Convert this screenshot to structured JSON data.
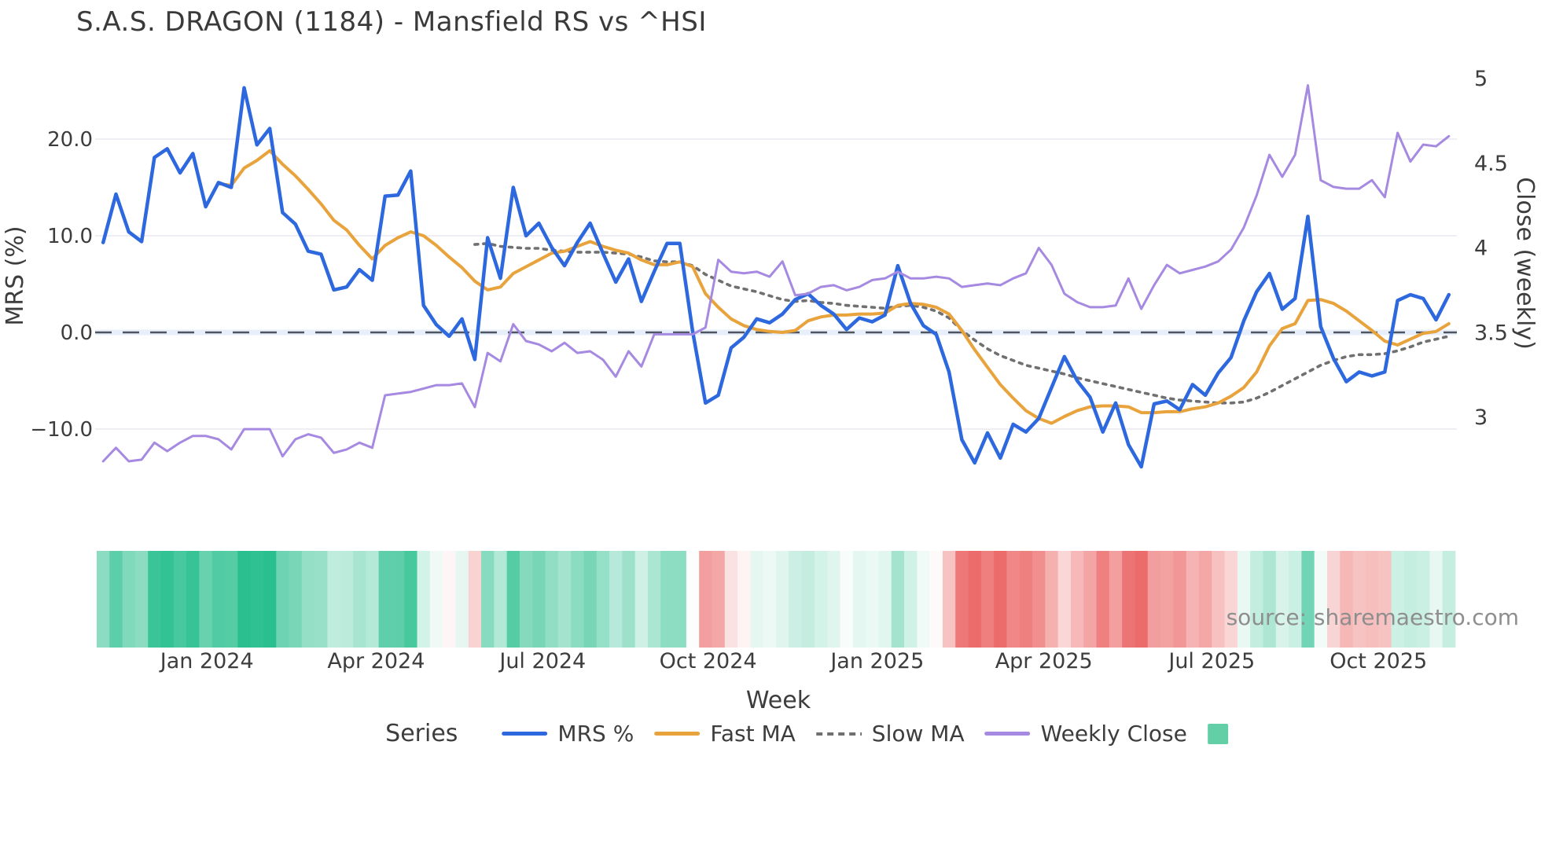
{
  "title": "S.A.S. DRAGON (1184) - Mansfield RS vs ^HSI",
  "source_note": "source: sharemaestro.com",
  "colors": {
    "mrs_line": "#2d68de",
    "fast_ma_line": "#e8a33c",
    "slow_ma_line": "#707070",
    "weekly_close_line": "#a689e1",
    "zero_dash_line": "#4e5560",
    "zero_band": "#e7effa",
    "gridline": "#e9e9f0",
    "tick_text": "#3d3d3d",
    "heat_positive": "#2abf8e",
    "heat_negative": "#ec6b6b",
    "legend_square": "#63cfa6"
  },
  "chart_data": {
    "type": "line",
    "title": "S.A.S. DRAGON (1184) - Mansfield RS vs ^HSI",
    "x_axis": {
      "label": "Week",
      "tick_labels": [
        "Jan 2024",
        "Apr 2024",
        "Jul 2024",
        "Oct 2024",
        "Jan 2025",
        "Apr 2025",
        "Jul 2025",
        "Oct 2025"
      ],
      "tick_indices": [
        8.6,
        21.8,
        34.8,
        47.7,
        60.9,
        73.9,
        87.0,
        100.0
      ],
      "n_points": 106,
      "grid": false
    },
    "y_left": {
      "label": "MRS (%)",
      "tick_labels": [
        "20.0",
        "10.0",
        "0.0",
        "−10.0"
      ],
      "tick_values": [
        20.0,
        10.0,
        0.0,
        -10.0
      ],
      "range": [
        -18.0,
        30.0
      ],
      "zero_line": "dashed",
      "grid": true
    },
    "y_right": {
      "label": "Close (weekly)",
      "tick_labels": [
        "5",
        "4.5",
        "4",
        "3.5",
        "3"
      ],
      "tick_values": [
        5.0,
        4.5,
        4.0,
        3.5,
        3.0
      ],
      "range": [
        2.47,
        5.2
      ],
      "grid": false
    },
    "legend": {
      "title": "Series",
      "position": "bottom",
      "items": [
        {
          "label": "MRS %",
          "swatch": "line",
          "color": "#2d68de"
        },
        {
          "label": "Fast MA",
          "swatch": "line",
          "color": "#e8a33c"
        },
        {
          "label": "Slow MA",
          "swatch": "dashed-line",
          "color": "#707070"
        },
        {
          "label": "Weekly Close",
          "swatch": "line",
          "color": "#a689e1"
        },
        {
          "label": "",
          "swatch": "square",
          "color": "#63cfa6"
        }
      ]
    },
    "heatmap": {
      "description": "weekly strip below chart shaded by MRS % (green positive, red negative)",
      "positive_color": "#2abf8e",
      "negative_color": "#ec6b6b"
    },
    "series": [
      {
        "name": "MRS %",
        "axis": "left",
        "style": "solid",
        "color": "#2d68de",
        "values": [
          9.3,
          14.3,
          10.4,
          9.4,
          18.1,
          19.0,
          16.5,
          18.5,
          13.0,
          15.5,
          15.0,
          25.3,
          19.4,
          21.1,
          12.4,
          11.2,
          8.4,
          8.1,
          4.4,
          4.7,
          6.5,
          5.4,
          14.1,
          14.2,
          16.7,
          2.8,
          0.8,
          -0.4,
          1.4,
          -2.8,
          9.8,
          5.6,
          15.0,
          10.0,
          11.3,
          8.8,
          6.9,
          9.3,
          11.3,
          8.2,
          5.2,
          7.6,
          3.2,
          6.3,
          9.2,
          9.2,
          0.1,
          -7.3,
          -6.5,
          -1.6,
          -0.5,
          1.4,
          1.0,
          1.9,
          3.4,
          4.0,
          2.8,
          1.9,
          0.3,
          1.5,
          1.1,
          1.8,
          6.9,
          3.0,
          0.7,
          -0.2,
          -4.1,
          -11.1,
          -13.5,
          -10.4,
          -13.0,
          -9.5,
          -10.3,
          -8.9,
          -5.7,
          -2.5,
          -5.0,
          -6.7,
          -10.3,
          -7.3,
          -11.6,
          -13.9,
          -7.4,
          -7.1,
          -8.0,
          -5.4,
          -6.5,
          -4.2,
          -2.6,
          1.2,
          4.2,
          6.1,
          2.4,
          3.5,
          12.0,
          0.6,
          -2.7,
          -5.1,
          -4.1,
          -4.5,
          -4.1,
          3.3,
          3.9,
          3.5,
          1.3,
          3.9
        ]
      },
      {
        "name": "Fast MA",
        "axis": "left",
        "style": "solid",
        "color": "#e8a33c",
        "values": [
          null,
          null,
          null,
          null,
          null,
          null,
          null,
          null,
          null,
          15.4,
          15.2,
          17.0,
          17.8,
          18.8,
          17.4,
          16.2,
          14.8,
          13.3,
          11.6,
          10.6,
          9.0,
          7.6,
          9.0,
          9.8,
          10.4,
          10.0,
          9.0,
          7.8,
          6.7,
          5.3,
          4.4,
          4.7,
          6.1,
          6.8,
          7.5,
          8.2,
          8.4,
          8.9,
          9.4,
          8.9,
          8.5,
          8.2,
          7.5,
          7.0,
          7.0,
          7.3,
          6.8,
          4.0,
          2.6,
          1.4,
          0.7,
          0.3,
          0.1,
          0.0,
          0.2,
          1.2,
          1.6,
          1.8,
          1.8,
          1.9,
          1.9,
          2.0,
          2.8,
          3.0,
          2.9,
          2.6,
          1.9,
          0.2,
          -1.8,
          -3.6,
          -5.4,
          -6.8,
          -8.1,
          -8.9,
          -9.4,
          -8.7,
          -8.1,
          -7.7,
          -7.6,
          -7.6,
          -7.7,
          -8.3,
          -8.3,
          -8.2,
          -8.2,
          -7.9,
          -7.7,
          -7.3,
          -6.6,
          -5.7,
          -4.1,
          -1.4,
          0.4,
          0.9,
          3.3,
          3.4,
          3.0,
          2.2,
          1.2,
          0.2,
          -0.9,
          -1.3,
          -0.7,
          -0.1,
          0.1,
          0.9
        ]
      },
      {
        "name": "Slow MA",
        "axis": "left",
        "style": "dotted",
        "color": "#707070",
        "values": [
          null,
          null,
          null,
          null,
          null,
          null,
          null,
          null,
          null,
          null,
          null,
          null,
          null,
          null,
          null,
          null,
          null,
          null,
          null,
          null,
          null,
          null,
          null,
          null,
          null,
          null,
          null,
          null,
          null,
          9.1,
          9.2,
          8.9,
          8.8,
          8.7,
          8.7,
          8.5,
          8.4,
          8.3,
          8.3,
          8.3,
          8.2,
          8.1,
          7.8,
          7.4,
          7.3,
          7.3,
          6.9,
          6.0,
          5.4,
          4.8,
          4.5,
          4.2,
          3.8,
          3.4,
          3.2,
          3.3,
          3.1,
          3.0,
          2.8,
          2.7,
          2.6,
          2.5,
          2.7,
          2.8,
          2.6,
          2.2,
          1.5,
          0.2,
          -0.8,
          -1.7,
          -2.4,
          -2.9,
          -3.4,
          -3.7,
          -4.0,
          -4.3,
          -4.7,
          -5.0,
          -5.3,
          -5.6,
          -5.9,
          -6.2,
          -6.5,
          -6.8,
          -7.0,
          -7.1,
          -7.2,
          -7.3,
          -7.3,
          -7.2,
          -6.8,
          -6.2,
          -5.5,
          -4.8,
          -4.1,
          -3.4,
          -2.9,
          -2.5,
          -2.3,
          -2.3,
          -2.2,
          -1.9,
          -1.5,
          -1.0,
          -0.7,
          -0.4
        ]
      },
      {
        "name": "Weekly Close",
        "axis": "right",
        "style": "solid",
        "color": "#a689e1",
        "values": [
          2.74,
          2.82,
          2.74,
          2.75,
          2.85,
          2.8,
          2.85,
          2.89,
          2.89,
          2.87,
          2.81,
          2.93,
          2.93,
          2.93,
          2.77,
          2.87,
          2.9,
          2.88,
          2.79,
          2.81,
          2.85,
          2.82,
          3.13,
          3.14,
          3.15,
          3.17,
          3.19,
          3.19,
          3.2,
          3.06,
          3.38,
          3.33,
          3.55,
          3.45,
          3.43,
          3.39,
          3.44,
          3.38,
          3.39,
          3.34,
          3.24,
          3.39,
          3.3,
          3.49,
          3.49,
          3.49,
          3.49,
          3.53,
          3.93,
          3.86,
          3.85,
          3.86,
          3.83,
          3.92,
          3.72,
          3.73,
          3.77,
          3.78,
          3.75,
          3.77,
          3.81,
          3.82,
          3.86,
          3.82,
          3.82,
          3.83,
          3.82,
          3.77,
          3.78,
          3.79,
          3.78,
          3.82,
          3.85,
          4.0,
          3.9,
          3.73,
          3.68,
          3.65,
          3.65,
          3.66,
          3.82,
          3.64,
          3.78,
          3.9,
          3.85,
          3.87,
          3.89,
          3.92,
          3.99,
          4.12,
          4.31,
          4.55,
          4.42,
          4.55,
          4.96,
          4.4,
          4.36,
          4.35,
          4.35,
          4.4,
          4.3,
          4.68,
          4.51,
          4.61,
          4.6,
          4.66
        ]
      }
    ]
  }
}
